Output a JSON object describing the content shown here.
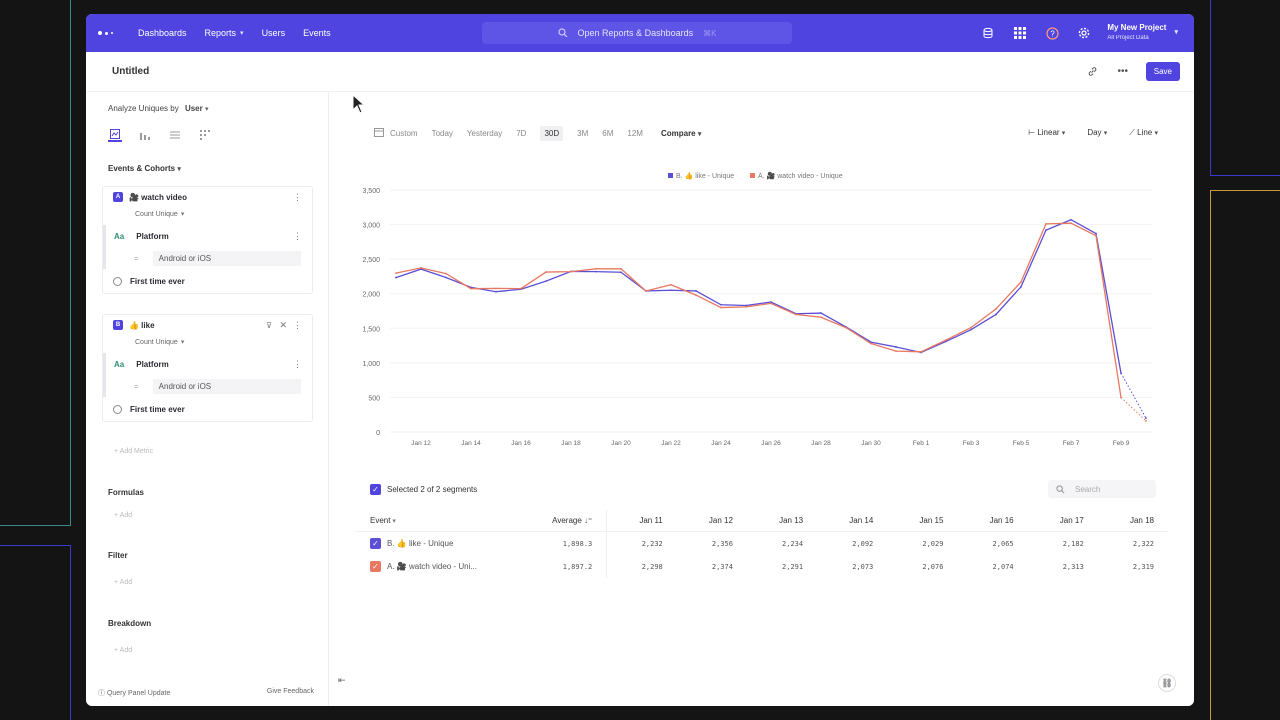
{
  "colors": {
    "accent": "#4f44e0",
    "series_b": "#5b4fd6",
    "series_a": "#e8785f"
  },
  "nav": {
    "items": [
      {
        "label": "Dashboards",
        "caret": false
      },
      {
        "label": "Reports",
        "caret": true
      },
      {
        "label": "Users",
        "caret": false
      },
      {
        "label": "Events",
        "caret": false
      }
    ],
    "search_label": "Open Reports & Dashboards",
    "search_shortcut": "⌘K",
    "project_name": "My New Project",
    "project_sub": "All Project Data"
  },
  "header": {
    "title": "Untitled",
    "save_label": "Save"
  },
  "left": {
    "analyze_prefix": "Analyze Uniques by",
    "analyze_value": "User",
    "events_title": "Events & Cohorts",
    "metrics": [
      {
        "badge": "A",
        "name": "🎥 watch video",
        "measure": "Count Unique",
        "filter_prop": "Platform",
        "filter_op": "=",
        "filter_value": "Android or iOS",
        "time": "First time ever"
      },
      {
        "badge": "B",
        "name": "👍 like",
        "measure": "Count Unique",
        "filter_prop": "Platform",
        "filter_op": "=",
        "filter_value": "Android or iOS",
        "time": "First time ever"
      }
    ],
    "add_metric": "+ Add Metric",
    "formulas": "Formulas",
    "filter": "Filter",
    "breakdown": "Breakdown",
    "add": "+ Add",
    "footer_left": "Query Panel Update",
    "footer_right": "Give Feedback"
  },
  "toolbar": {
    "ranges": [
      "Custom",
      "Today",
      "Yesterday",
      "7D",
      "30D",
      "3M",
      "6M",
      "12M"
    ],
    "active_range": "30D",
    "compare": "Compare",
    "scale": "Linear",
    "interval": "Day",
    "chart_type": "Line"
  },
  "chart_data": {
    "type": "line",
    "legend": [
      "B. 👍 like - Unique",
      "A. 🎥 watch video - Unique"
    ],
    "x_tick_labels": [
      "Jan 12",
      "Jan 14",
      "Jan 16",
      "Jan 18",
      "Jan 20",
      "Jan 22",
      "Jan 24",
      "Jan 26",
      "Jan 28",
      "Jan 30",
      "Feb 1",
      "Feb 3",
      "Feb 5",
      "Feb 7",
      "Feb 9"
    ],
    "y_ticks": [
      "0",
      "500",
      "1,000",
      "1,500",
      "2,000",
      "2,500",
      "3,000",
      "3,500"
    ],
    "ylim": [
      0,
      3500
    ],
    "x": [
      "Jan 11",
      "Jan 12",
      "Jan 13",
      "Jan 14",
      "Jan 15",
      "Jan 16",
      "Jan 17",
      "Jan 18",
      "Jan 19",
      "Jan 20",
      "Jan 21",
      "Jan 22",
      "Jan 23",
      "Jan 24",
      "Jan 25",
      "Jan 26",
      "Jan 27",
      "Jan 28",
      "Jan 29",
      "Jan 30",
      "Jan 31",
      "Feb 1",
      "Feb 2",
      "Feb 3",
      "Feb 4",
      "Feb 5",
      "Feb 6",
      "Feb 7",
      "Feb 8",
      "Feb 9",
      "Feb 10"
    ],
    "series": [
      {
        "name": "B. 👍 like - Unique",
        "values": [
          2232,
          2356,
          2234,
          2092,
          2029,
          2065,
          2182,
          2322,
          2320,
          2310,
          2040,
          2050,
          2040,
          1840,
          1830,
          1880,
          1710,
          1720,
          1520,
          1300,
          1230,
          1150,
          1310,
          1480,
          1700,
          2100,
          2920,
          3070,
          2870,
          850,
          200
        ],
        "dotted_from_index": 29
      },
      {
        "name": "A. 🎥 watch video - Unique",
        "values": [
          2298,
          2374,
          2291,
          2073,
          2076,
          2074,
          2313,
          2319,
          2360,
          2360,
          2040,
          2130,
          1980,
          1800,
          1810,
          1860,
          1700,
          1660,
          1510,
          1280,
          1170,
          1160,
          1330,
          1510,
          1780,
          2170,
          3010,
          3020,
          2840,
          500,
          160
        ],
        "dotted_from_index": 29
      }
    ]
  },
  "table": {
    "selected_text": "Selected 2 of 2 segments",
    "search_placeholder": "Search",
    "col_event": "Event",
    "col_average": "Average",
    "date_cols": [
      "Jan 11",
      "Jan 12",
      "Jan 13",
      "Jan 14",
      "Jan 15",
      "Jan 16",
      "Jan 17",
      "Jan 18"
    ],
    "rows": [
      {
        "event": "B. 👍 like - Unique",
        "average": "1,898.3",
        "cells": [
          "2,232",
          "2,356",
          "2,234",
          "2,092",
          "2,029",
          "2,065",
          "2,182",
          "2,322"
        ]
      },
      {
        "event": "A. 🎥 watch video - Uni...",
        "average": "1,897.2",
        "cells": [
          "2,298",
          "2,374",
          "2,291",
          "2,073",
          "2,076",
          "2,074",
          "2,313",
          "2,319"
        ]
      }
    ]
  }
}
